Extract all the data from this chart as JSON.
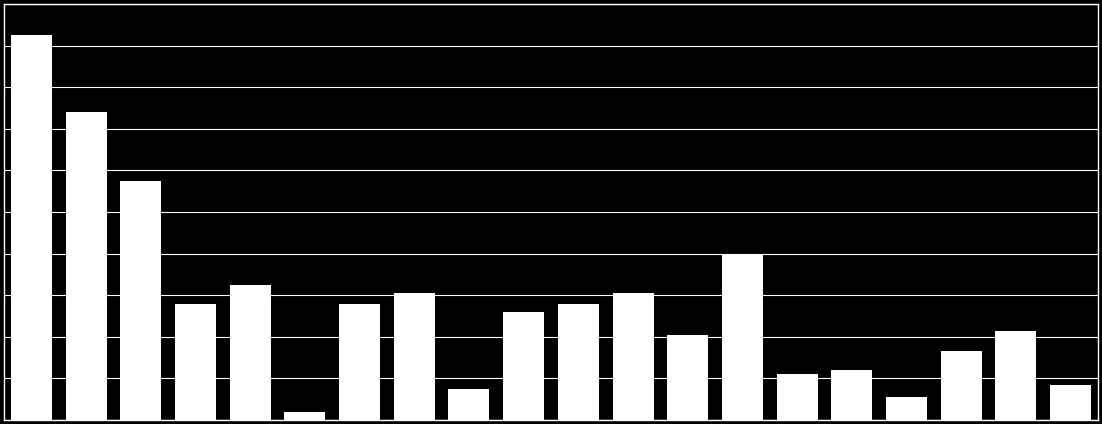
{
  "values": [
    100,
    80,
    62,
    30,
    35,
    2,
    30,
    33,
    8,
    28,
    30,
    33,
    22,
    43,
    12,
    13,
    6,
    18,
    23,
    9
  ],
  "background_color": "#000000",
  "bar_color": "#ffffff",
  "grid_color": "#ffffff",
  "axis_color": "#ffffff",
  "ylim": [
    0,
    108
  ],
  "n_gridlines": 10,
  "bar_width": 0.75
}
